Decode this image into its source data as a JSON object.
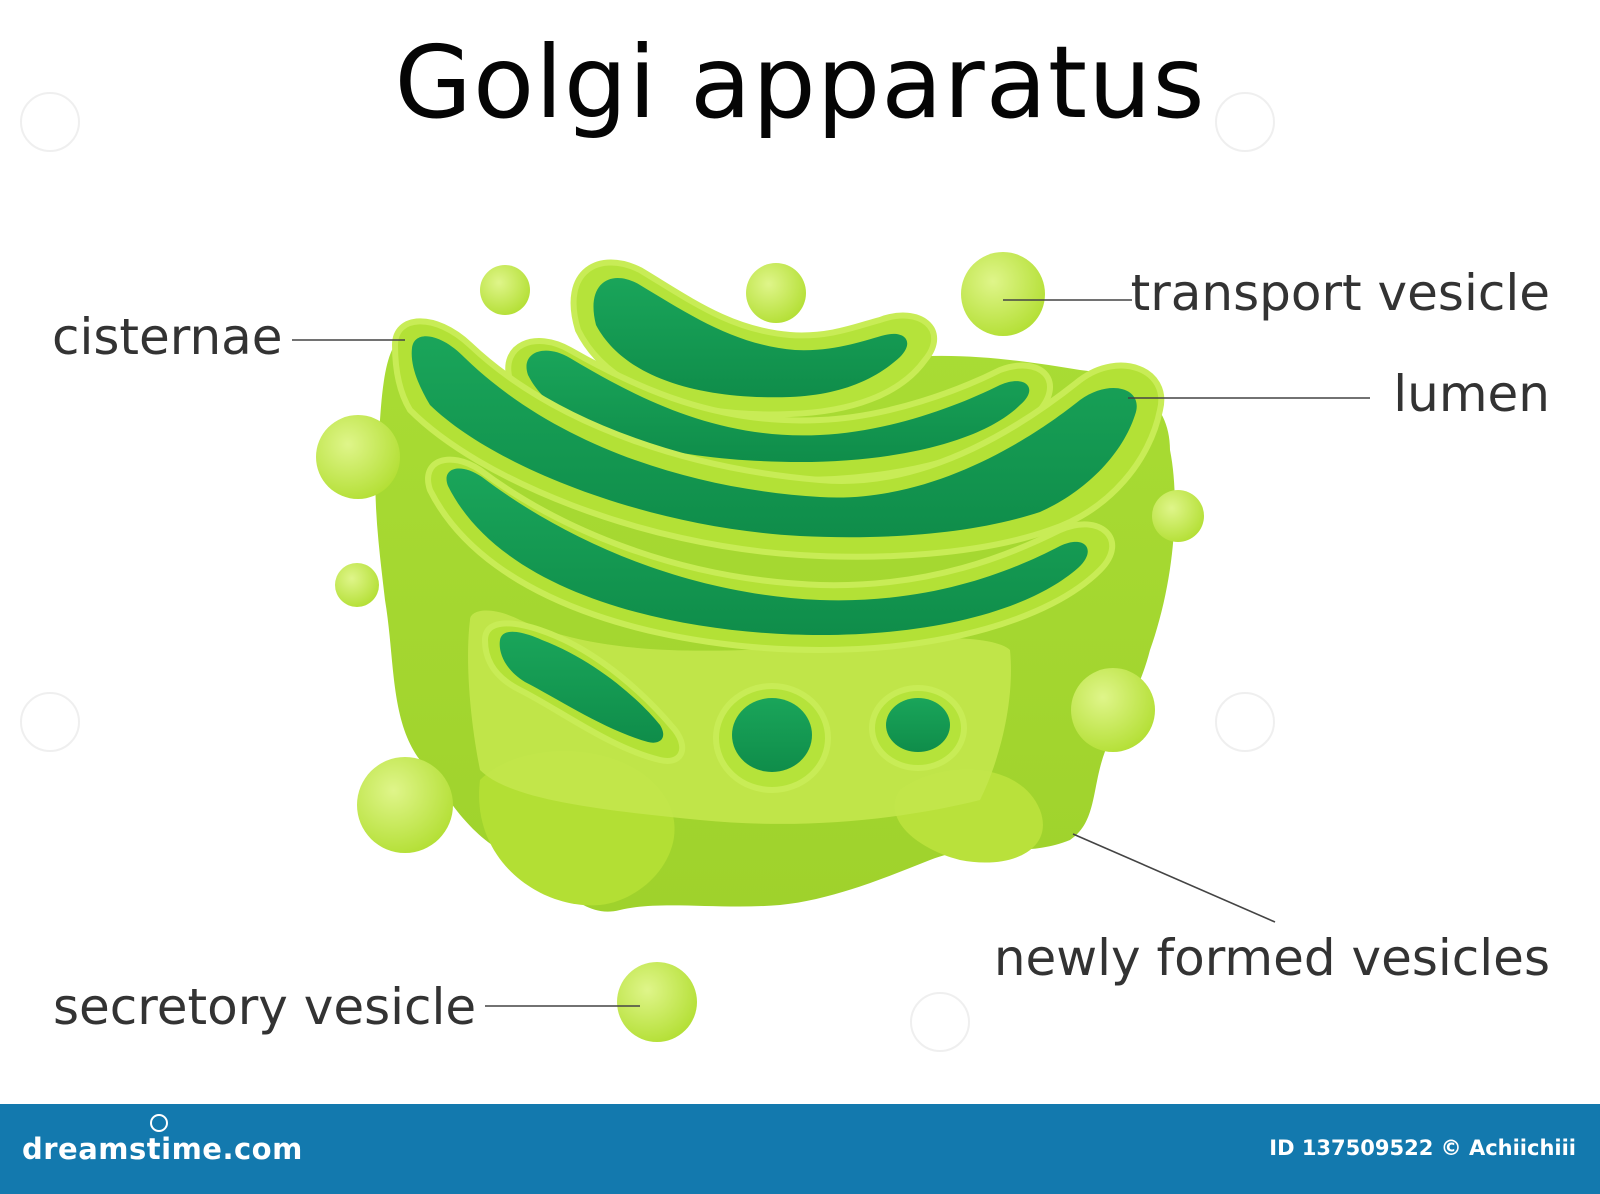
{
  "title": "Golgi apparatus",
  "labels": {
    "cisternae": "cisternae",
    "transport_vesicle": "transport vesicle",
    "lumen": "lumen",
    "newly_formed_vesicles": "newly formed vesicles",
    "secretory_vesicle": "secretory vesicle"
  },
  "footer": {
    "brand": "dreamstime.com",
    "credit": "ID 137509522 © Achiichiii"
  },
  "colors": {
    "membrane": "#b5e33a",
    "lumen": "#139a53",
    "vesicle": "#c6ea4f",
    "footer_bar": "#1379ae"
  }
}
